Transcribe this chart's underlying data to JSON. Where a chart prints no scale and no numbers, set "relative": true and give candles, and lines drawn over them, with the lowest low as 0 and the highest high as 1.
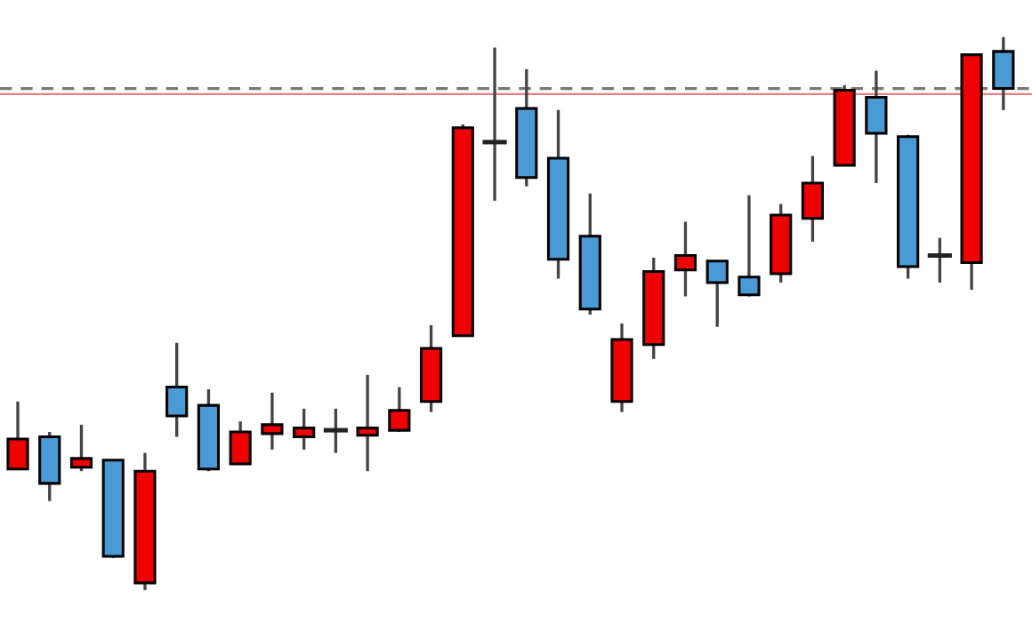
{
  "chart_data": {
    "type": "candlestick",
    "relative": true,
    "categories": [
      null,
      null,
      null,
      null,
      null,
      null,
      null,
      null,
      null,
      null,
      null,
      null,
      null,
      null,
      null,
      null,
      null,
      null,
      null,
      null,
      null,
      null,
      null,
      null,
      null,
      null,
      null,
      null,
      null,
      null,
      null,
      null
    ],
    "ohlc": [
      [
        0.219,
        0.341,
        0.219,
        0.273
      ],
      [
        0.277,
        0.286,
        0.161,
        0.193
      ],
      [
        0.222,
        0.299,
        0.215,
        0.238
      ],
      [
        0.235,
        0.235,
        0.058,
        0.061
      ],
      [
        0.013,
        0.248,
        0.0,
        0.215
      ],
      [
        0.367,
        0.447,
        0.277,
        0.315
      ],
      [
        0.334,
        0.363,
        0.215,
        0.219
      ],
      [
        0.228,
        0.305,
        0.228,
        0.286
      ],
      [
        0.283,
        0.357,
        0.254,
        0.299
      ],
      [
        0.277,
        0.328,
        0.254,
        0.293
      ],
      [
        0.289,
        0.328,
        0.248,
        0.289
      ],
      [
        0.28,
        0.389,
        0.215,
        0.293
      ],
      [
        0.289,
        0.367,
        0.286,
        0.325
      ],
      [
        0.341,
        0.479,
        0.322,
        0.437
      ],
      [
        0.46,
        0.842,
        0.46,
        0.836
      ],
      [
        0.81,
        0.981,
        0.704,
        0.81
      ],
      [
        0.871,
        0.942,
        0.73,
        0.746
      ],
      [
        0.781,
        0.868,
        0.563,
        0.598
      ],
      [
        0.64,
        0.717,
        0.498,
        0.508
      ],
      [
        0.341,
        0.482,
        0.322,
        0.453
      ],
      [
        0.444,
        0.601,
        0.418,
        0.576
      ],
      [
        0.579,
        0.666,
        0.531,
        0.605
      ],
      [
        0.595,
        0.595,
        0.476,
        0.556
      ],
      [
        0.566,
        0.714,
        0.531,
        0.534
      ],
      [
        0.572,
        0.698,
        0.556,
        0.678
      ],
      [
        0.672,
        0.785,
        0.63,
        0.736
      ],
      [
        0.768,
        0.913,
        0.768,
        0.904
      ],
      [
        0.891,
        0.939,
        0.736,
        0.826
      ],
      [
        0.82,
        0.823,
        0.563,
        0.585
      ],
      [
        0.605,
        0.637,
        0.556,
        0.605
      ],
      [
        0.592,
        0.968,
        0.543,
        0.968
      ],
      [
        0.974,
        1.0,
        0.868,
        0.907
      ]
    ],
    "colors": [
      "#f00000",
      "#4a9ad6",
      "#f00000",
      "#4a9ad6",
      "#f00000",
      "#4a9ad6",
      "#4a9ad6",
      "#f00000",
      "#f00000",
      "#f00000",
      "#222222",
      "#f00000",
      "#f00000",
      "#f00000",
      "#f00000",
      "#222222",
      "#4a9ad6",
      "#4a9ad6",
      "#4a9ad6",
      "#f00000",
      "#f00000",
      "#f00000",
      "#4a9ad6",
      "#4a9ad6",
      "#f00000",
      "#f00000",
      "#f00000",
      "#4a9ad6",
      "#4a9ad6",
      "#222222",
      "#f00000",
      "#4a9ad6"
    ],
    "ref_lines": [
      {
        "axis": "y",
        "value": 0.907,
        "label": null,
        "color": "#777777",
        "line_style": "dashed"
      },
      {
        "axis": "y",
        "value": 0.897,
        "label": null,
        "color": "#e88080",
        "line_style": "solid"
      }
    ]
  }
}
